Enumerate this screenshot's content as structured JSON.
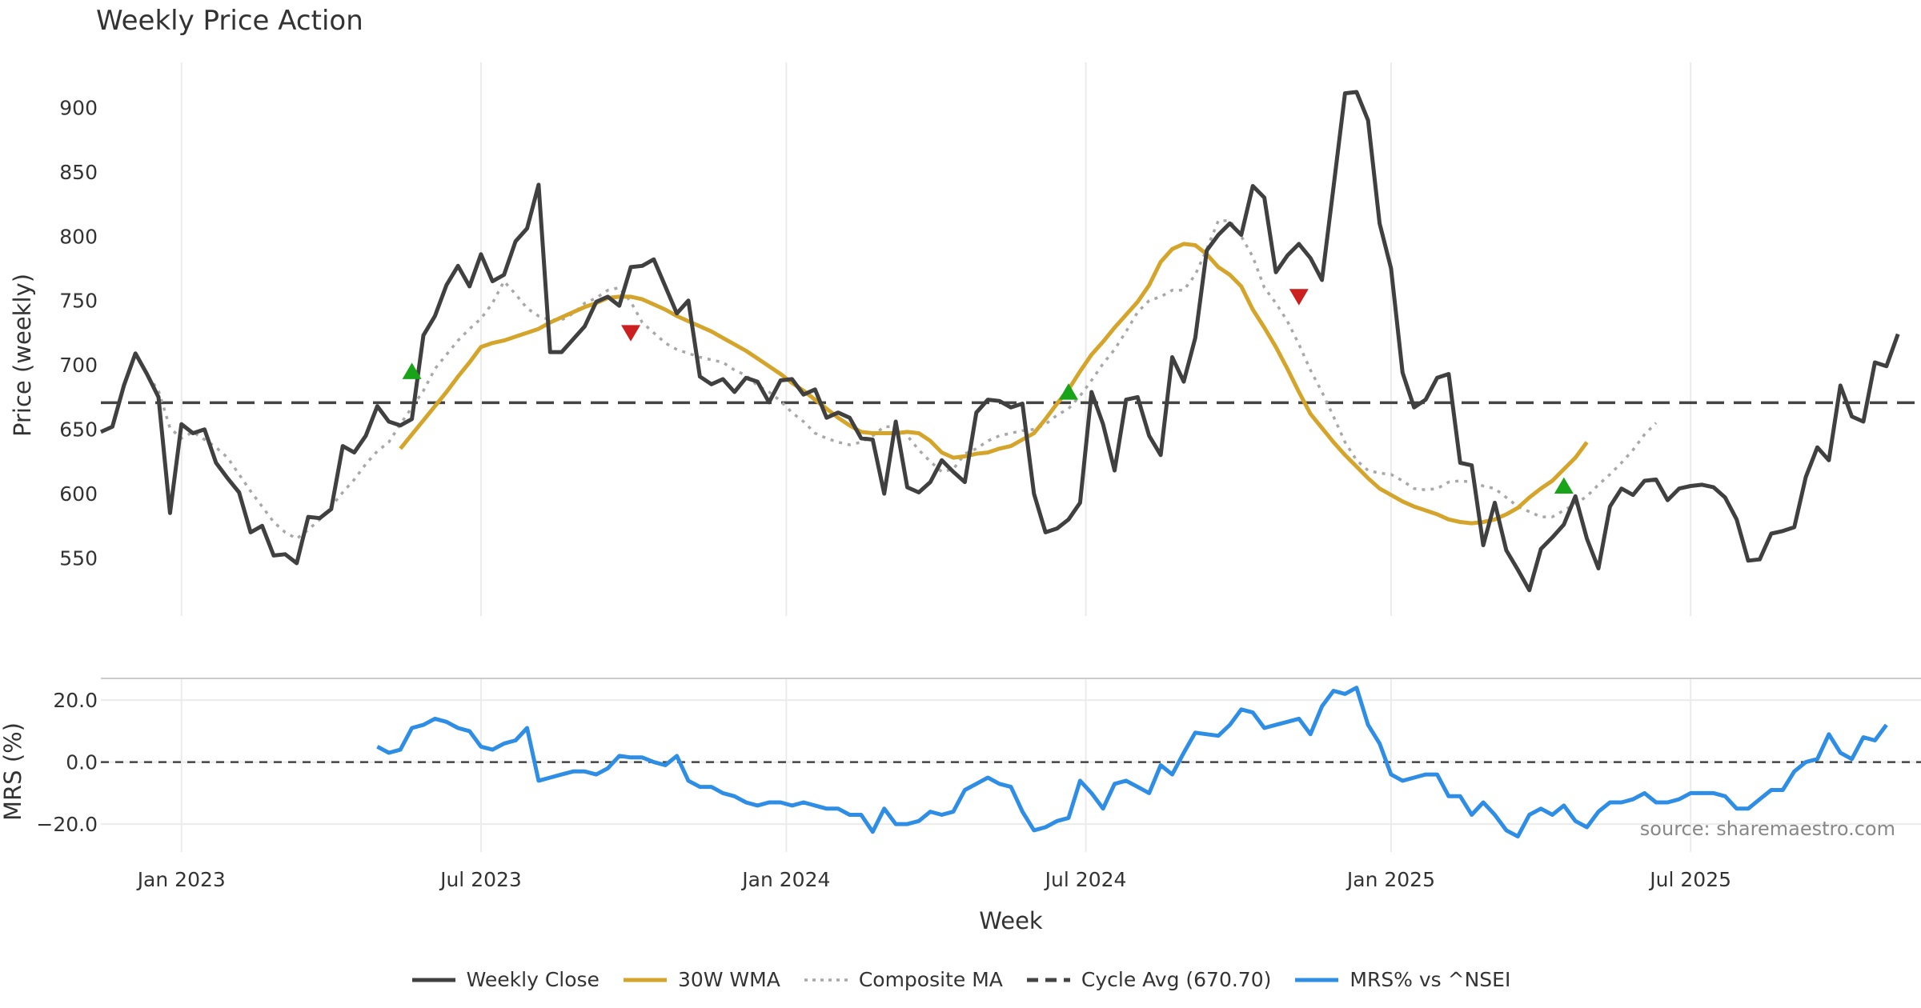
{
  "chart_data": [
    {
      "type": "line",
      "title": "Weekly Price Action",
      "xlabel": "Week",
      "ylabel": "Price (weekly)",
      "ylim": [
        505,
        935
      ],
      "yticks": [
        550,
        600,
        650,
        700,
        750,
        800,
        850,
        900
      ],
      "x_start": "2022-11-14",
      "week_step": 1,
      "x_ticks": [
        {
          "label": "Jan 2023",
          "week": 7
        },
        {
          "label": "Jul 2023",
          "week": 33
        },
        {
          "label": "Jan 2024",
          "week": 59.5
        },
        {
          "label": "Jul 2024",
          "week": 85.5
        },
        {
          "label": "Jan 2025",
          "week": 112
        },
        {
          "label": "Jul 2025",
          "week": 138
        }
      ],
      "grid": true,
      "series": [
        {
          "name": "Weekly Close",
          "color": "#404040",
          "style": "solid",
          "start_week": 0,
          "values": [
            648,
            652,
            684,
            709,
            693,
            675,
            585,
            654,
            647,
            650,
            624,
            612,
            601,
            570,
            575,
            552,
            553,
            546,
            582,
            581,
            588,
            637,
            632,
            645,
            668,
            656,
            653,
            658,
            723,
            738,
            762,
            777,
            761,
            786,
            765,
            770,
            796,
            806,
            840,
            710,
            710,
            720,
            730,
            749,
            753,
            746,
            776,
            777,
            782,
            761,
            740,
            750,
            691,
            685,
            689,
            679,
            690,
            687,
            671,
            688,
            689,
            677,
            681,
            659,
            663,
            659,
            643,
            642,
            600,
            656,
            605,
            601,
            609,
            626,
            617,
            609,
            663,
            673,
            672,
            667,
            670,
            600,
            570,
            573,
            580,
            593,
            679,
            654,
            618,
            673,
            675,
            645,
            630,
            706,
            687,
            721,
            789,
            801,
            810,
            801,
            839,
            830,
            772,
            785,
            794,
            783,
            766,
            838,
            911,
            912,
            890,
            810,
            775,
            694,
            667,
            673,
            690,
            693,
            624,
            622,
            560,
            593,
            556,
            541,
            525,
            557,
            566,
            576,
            598,
            565,
            542,
            590,
            604,
            599,
            610,
            611,
            595,
            604,
            606,
            607,
            605,
            597,
            580,
            548,
            549,
            569,
            571,
            574,
            613,
            636,
            626,
            684,
            660,
            656,
            702,
            699,
            724
          ]
        },
        {
          "name": "30W WMA",
          "color": "#d4a52a",
          "style": "solid",
          "start_week": 26,
          "values": [
            635,
            646,
            657,
            668,
            679,
            691,
            702,
            714,
            717,
            719,
            722,
            725,
            728,
            733,
            737,
            741,
            745,
            748,
            752,
            753,
            753,
            751,
            747,
            743,
            738,
            734,
            730,
            726,
            721,
            716,
            711,
            705,
            699,
            693,
            686,
            680,
            673,
            666,
            659,
            653,
            648,
            647,
            647,
            647,
            648,
            647,
            641,
            632,
            628,
            629,
            631,
            632,
            635,
            637,
            642,
            647,
            658,
            670,
            681,
            695,
            708,
            718,
            729,
            739,
            749,
            762,
            780,
            790,
            794,
            793,
            786,
            776,
            770,
            761,
            743,
            729,
            714,
            697,
            679,
            662,
            651,
            640,
            630,
            621,
            612,
            604,
            599,
            594,
            590,
            587,
            584,
            580,
            578,
            577,
            578,
            580,
            584,
            589,
            597,
            604,
            610,
            619,
            628,
            640
          ]
        },
        {
          "name": "Composite MA",
          "color": "#a8a8a8",
          "style": "dotted",
          "start_week": 3,
          "values": [
            709,
            693,
            680,
            651,
            643,
            648,
            642,
            636,
            628,
            615,
            602,
            590,
            578,
            570,
            565,
            572,
            580,
            590,
            601,
            611,
            623,
            633,
            640,
            654,
            667,
            680,
            697,
            708,
            719,
            728,
            736,
            748,
            765,
            755,
            744,
            738,
            735,
            735,
            740,
            748,
            752,
            758,
            760,
            749,
            733,
            725,
            717,
            712,
            709,
            706,
            704,
            702,
            696,
            692,
            684,
            679,
            672,
            663,
            656,
            647,
            643,
            640,
            638,
            640,
            645,
            652,
            652,
            645,
            634,
            625,
            617,
            619,
            631,
            635,
            641,
            645,
            647,
            649,
            650,
            654,
            661,
            666,
            676,
            688,
            701,
            712,
            726,
            741,
            750,
            753,
            758,
            758,
            770,
            790,
            812,
            812,
            800,
            784,
            760,
            748,
            734,
            716,
            696,
            679,
            660,
            640,
            626,
            618,
            616,
            615,
            610,
            604,
            603,
            604,
            609,
            610,
            609,
            606,
            604,
            597,
            590,
            586,
            582,
            582,
            587,
            592,
            598,
            607,
            615,
            624,
            634,
            646,
            655
          ]
        }
      ],
      "reference_lines": [
        {
          "name": "Cycle Avg (670.70)",
          "value": 670.7,
          "style": "dashed",
          "color": "#444444"
        }
      ],
      "markers": [
        {
          "type": "buy",
          "symbol": "triangle-up",
          "color": "#19a319",
          "week": 27,
          "value": 695
        },
        {
          "type": "sell",
          "symbol": "triangle-down",
          "color": "#cc1f1f",
          "week": 46,
          "value": 725
        },
        {
          "type": "buy",
          "symbol": "triangle-up",
          "color": "#19a319",
          "week": 84,
          "value": 679
        },
        {
          "type": "sell",
          "symbol": "triangle-down",
          "color": "#cc1f1f",
          "week": 104,
          "value": 753
        },
        {
          "type": "buy",
          "symbol": "triangle-up",
          "color": "#19a319",
          "week": 127,
          "value": 606
        }
      ]
    },
    {
      "type": "line",
      "title": "",
      "xlabel": "Week",
      "ylabel": "MRS (%)",
      "ylim": [
        -29,
        27
      ],
      "ytick_values": [
        20,
        0,
        -20
      ],
      "ytick_labels": [
        "20.0",
        "0.0",
        "−20.0"
      ],
      "grid": true,
      "series": [
        {
          "name": "MRS% vs ^NSEI",
          "color": "#2e8de4",
          "style": "solid",
          "start_week": 24,
          "values": [
            5,
            3,
            4,
            11,
            12,
            14,
            13,
            11,
            10,
            5,
            4,
            6,
            7,
            11,
            -6,
            -5,
            -4,
            -3,
            -3,
            -4,
            -2,
            2,
            1.5,
            1.5,
            0,
            -1,
            2,
            -6,
            -8,
            -8,
            -10,
            -11,
            -13,
            -14,
            -13,
            -13,
            -14,
            -13,
            -14,
            -15,
            -15,
            -17,
            -17,
            -22.5,
            -15,
            -20,
            -20,
            -19,
            -16,
            -17,
            -16,
            -9,
            -7,
            -5,
            -7,
            -8,
            -16,
            -22,
            -21,
            -19,
            -18,
            -6,
            -10,
            -15,
            -7,
            -6,
            -8,
            -10,
            -1,
            -4,
            3,
            9.5,
            9,
            8.5,
            12,
            17,
            16,
            11,
            12,
            13,
            14,
            9,
            18,
            23,
            22,
            24,
            12,
            6,
            -4,
            -6,
            -5,
            -4,
            -4,
            -11,
            -11,
            -17,
            -13,
            -17,
            -22,
            -24,
            -17,
            -15,
            -17,
            -14,
            -19,
            -21,
            -16,
            -13,
            -13,
            -12,
            -10,
            -13,
            -13,
            -12,
            -10,
            -10,
            -10,
            -11,
            -15,
            -15,
            -12,
            -9,
            -9,
            -3,
            0,
            1,
            9,
            3,
            1,
            8,
            7,
            12
          ]
        }
      ],
      "reference_lines": [
        {
          "name": "zero",
          "value": 0,
          "style": "dashed",
          "color": "#444444"
        }
      ],
      "annotations": [
        {
          "text": "source: sharemaestro.com",
          "position": "bottom-right"
        }
      ]
    }
  ],
  "legend": {
    "placement": "bottom-center",
    "items": [
      {
        "label": "Weekly Close",
        "color": "#404040",
        "style": "solid"
      },
      {
        "label": "30W WMA",
        "color": "#d4a52a",
        "style": "solid"
      },
      {
        "label": "Composite MA",
        "color": "#a8a8a8",
        "style": "dotted"
      },
      {
        "label": "Cycle Avg (670.70)",
        "color": "#444444",
        "style": "dashed"
      },
      {
        "label": "MRS% vs ^NSEI",
        "color": "#2e8de4",
        "style": "solid"
      }
    ]
  }
}
